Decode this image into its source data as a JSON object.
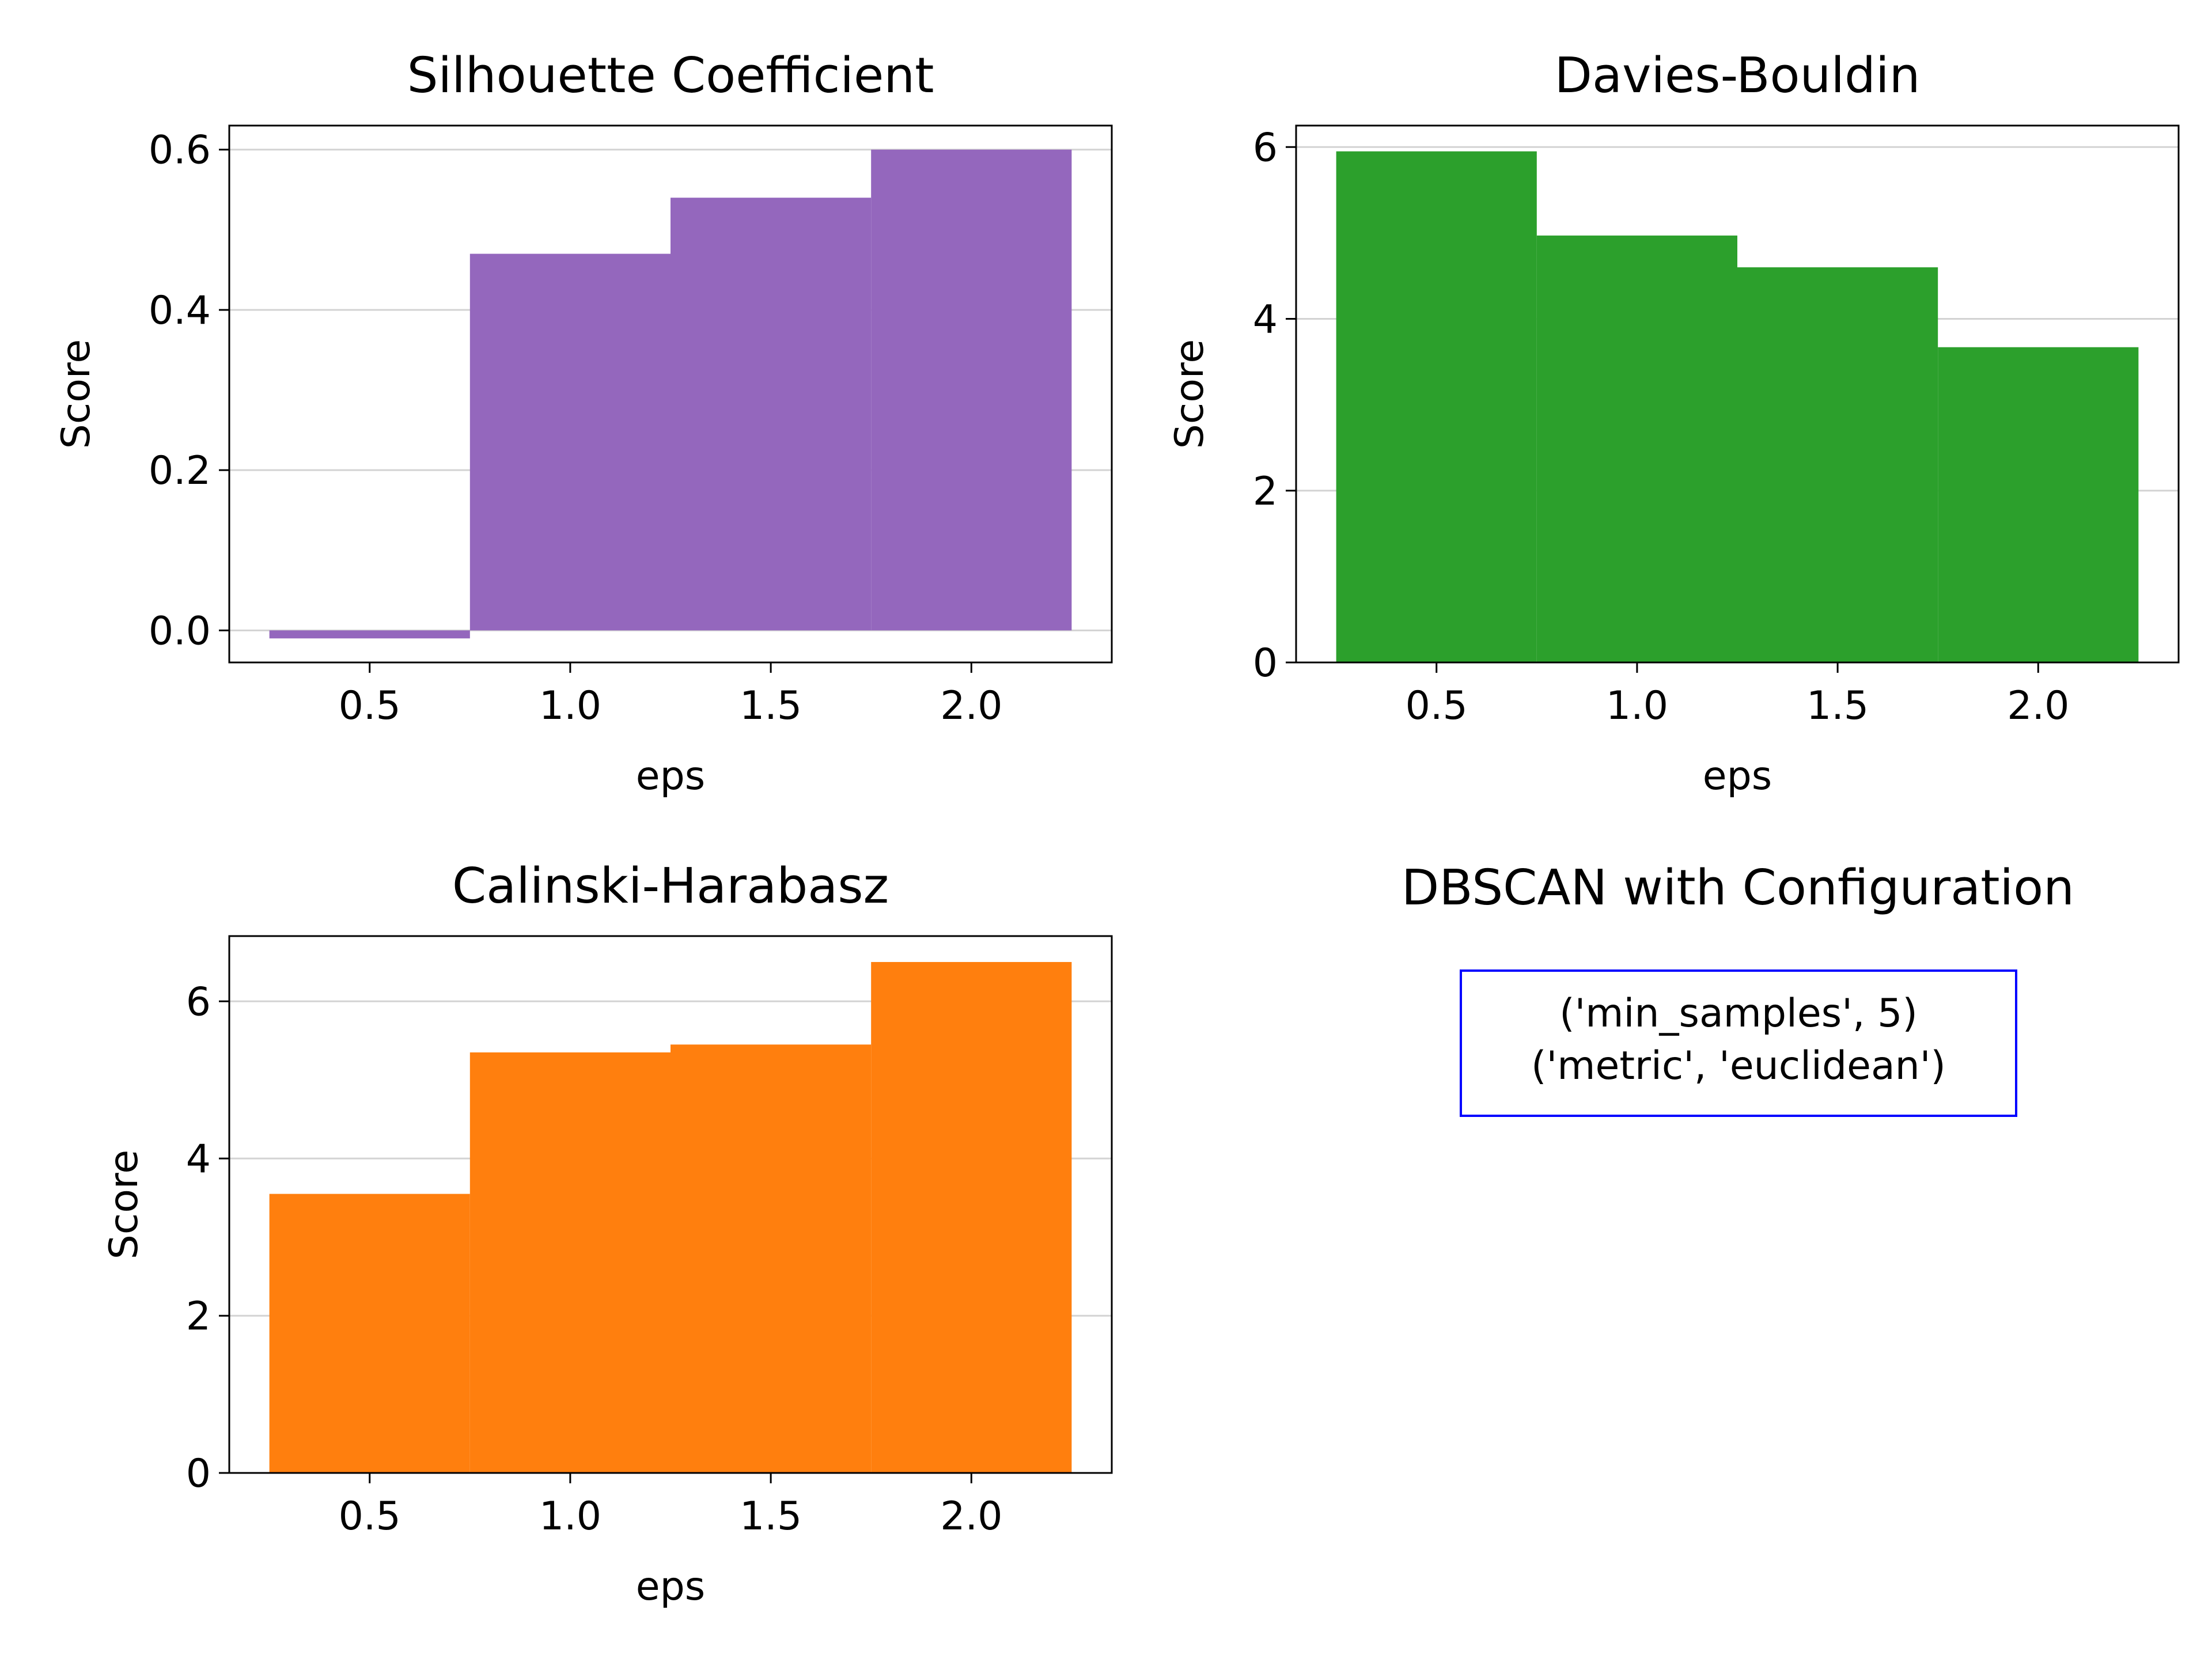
{
  "chart_data": [
    {
      "type": "bar",
      "title": "Silhouette Coefficient",
      "xlabel": "eps",
      "ylabel": "Score",
      "x": [
        0.5,
        1.0,
        1.5,
        2.0
      ],
      "values": [
        -0.01,
        0.47,
        0.54,
        0.6
      ],
      "xlim": [
        0.15,
        2.35
      ],
      "ylim": [
        -0.04,
        0.63
      ],
      "xticks": [
        "0.5",
        "1.0",
        "1.5",
        "2.0"
      ],
      "yticks": [
        "0.0",
        "0.2",
        "0.4",
        "0.6"
      ],
      "grid": "y",
      "color": "#9467bd"
    },
    {
      "type": "bar",
      "title": "Davies-Bouldin",
      "xlabel": "eps",
      "ylabel": "Score",
      "x": [
        0.5,
        1.0,
        1.5,
        2.0
      ],
      "values": [
        5.95,
        4.97,
        4.6,
        3.67
      ],
      "xlim": [
        0.15,
        2.35
      ],
      "ylim": [
        0,
        6.25
      ],
      "xticks": [
        "0.5",
        "1.0",
        "1.5",
        "2.0"
      ],
      "yticks": [
        "0",
        "2",
        "4",
        "6"
      ],
      "grid": "y",
      "color": "#2ca02c"
    },
    {
      "type": "bar",
      "title": "Calinski-Harabasz",
      "xlabel": "eps",
      "ylabel": "Score",
      "x": [
        0.5,
        1.0,
        1.5,
        2.0
      ],
      "values": [
        3.55,
        5.35,
        5.45,
        6.5
      ],
      "xlim": [
        0.15,
        2.35
      ],
      "ylim": [
        0,
        6.83
      ],
      "xticks": [
        "0.5",
        "1.0",
        "1.5",
        "2.0"
      ],
      "yticks": [
        "0",
        "2",
        "4",
        "6"
      ],
      "grid": "y",
      "color": "#ff7f0e"
    }
  ],
  "info_panel": {
    "title": "DBSCAN with Configuration",
    "lines": [
      "('min_samples', 5)",
      "('metric', 'euclidean')"
    ],
    "border_color": "#0000ff"
  }
}
